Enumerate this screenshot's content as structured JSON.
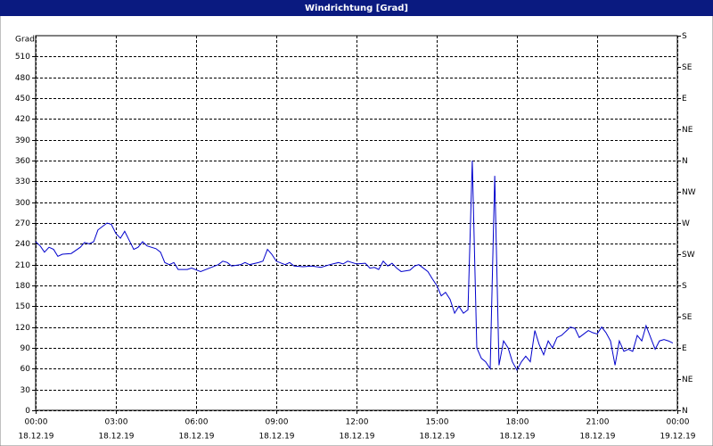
{
  "chart_data": {
    "type": "line",
    "title": "Windrichtung [Grad]",
    "ylabel": "Grad",
    "color": "#0000cc",
    "grid": true,
    "xlim": [
      0,
      24
    ],
    "xticks": [
      {
        "value": 0,
        "label": "00:00",
        "date": "18.12.19"
      },
      {
        "value": 3,
        "label": "03:00",
        "date": "18.12.19"
      },
      {
        "value": 6,
        "label": "06:00",
        "date": "18.12.19"
      },
      {
        "value": 9,
        "label": "09:00",
        "date": "18.12.19"
      },
      {
        "value": 12,
        "label": "12:00",
        "date": "18.12.19"
      },
      {
        "value": 15,
        "label": "15:00",
        "date": "18.12.19"
      },
      {
        "value": 18,
        "label": "18:00",
        "date": "18.12.19"
      },
      {
        "value": 21,
        "label": "21:00",
        "date": "18.12.19"
      },
      {
        "value": 24,
        "label": "00:00",
        "date": "19.12.19"
      }
    ],
    "ylim": [
      0,
      540
    ],
    "yticks": [
      0,
      30,
      60,
      90,
      120,
      150,
      180,
      210,
      240,
      270,
      300,
      330,
      360,
      390,
      420,
      450,
      480,
      510
    ],
    "y2lim": [
      0,
      540
    ],
    "y2ticks": [
      {
        "value": 0,
        "label": "N"
      },
      {
        "value": 45,
        "label": "NE"
      },
      {
        "value": 90,
        "label": "E"
      },
      {
        "value": 135,
        "label": "SE"
      },
      {
        "value": 180,
        "label": "S"
      },
      {
        "value": 225,
        "label": "SW"
      },
      {
        "value": 270,
        "label": "W"
      },
      {
        "value": 315,
        "label": "NW"
      },
      {
        "value": 360,
        "label": "N"
      },
      {
        "value": 405,
        "label": "NE"
      },
      {
        "value": 450,
        "label": "E"
      },
      {
        "value": 495,
        "label": "SE"
      },
      {
        "value": 540,
        "label": "S"
      }
    ],
    "x": [
      0,
      0.17,
      0.33,
      0.5,
      0.67,
      0.83,
      1,
      1.33,
      1.67,
      1.83,
      2,
      2.17,
      2.33,
      2.5,
      2.67,
      2.83,
      3,
      3.17,
      3.33,
      3.5,
      3.67,
      3.83,
      4,
      4.17,
      4.5,
      4.67,
      4.83,
      5,
      5.17,
      5.33,
      5.67,
      5.83,
      6.17,
      6.5,
      6.83,
      7,
      7.17,
      7.33,
      7.67,
      7.83,
      8,
      8.33,
      8.5,
      8.67,
      8.83,
      9,
      9.33,
      9.5,
      9.67,
      10,
      10.33,
      10.67,
      11,
      11.33,
      11.5,
      11.67,
      11.83,
      12,
      12.33,
      12.5,
      12.67,
      12.83,
      13,
      13.17,
      13.33,
      13.5,
      13.67,
      14,
      14.17,
      14.33,
      14.5,
      14.67,
      14.83,
      15,
      15.17,
      15.33,
      15.5,
      15.67,
      15.83,
      16,
      16.17,
      16.33,
      16.5,
      16.67,
      16.83,
      17,
      17.17,
      17.33,
      17.5,
      17.67,
      17.83,
      18,
      18.17,
      18.33,
      18.5,
      18.67,
      18.83,
      19,
      19.17,
      19.33,
      19.5,
      19.67,
      20,
      20.17,
      20.33,
      20.5,
      20.67,
      20.83,
      21,
      21.17,
      21.33,
      21.5,
      21.67,
      21.83,
      22,
      22.17,
      22.33,
      22.5,
      22.67,
      22.83,
      23,
      23.17,
      23.33,
      23.5,
      23.67,
      23.83
    ],
    "values": [
      243,
      237,
      228,
      235,
      232,
      222,
      225,
      226,
      235,
      242,
      240,
      243,
      260,
      265,
      270,
      268,
      255,
      248,
      258,
      245,
      232,
      235,
      243,
      237,
      233,
      228,
      213,
      210,
      213,
      203,
      203,
      205,
      200,
      205,
      210,
      215,
      213,
      208,
      210,
      213,
      210,
      213,
      215,
      232,
      225,
      215,
      210,
      213,
      208,
      207,
      208,
      206,
      210,
      213,
      211,
      215,
      213,
      211,
      212,
      205,
      206,
      203,
      215,
      208,
      212,
      205,
      200,
      202,
      208,
      210,
      205,
      200,
      190,
      180,
      165,
      170,
      160,
      140,
      150,
      140,
      145,
      360,
      90,
      75,
      70,
      60,
      338,
      65,
      100,
      90,
      70,
      58,
      70,
      78,
      70,
      115,
      95,
      80,
      100,
      90,
      105,
      108,
      120,
      118,
      105,
      110,
      115,
      112,
      110,
      120,
      112,
      100,
      65,
      100,
      85,
      88,
      85,
      108,
      100,
      122,
      105,
      88,
      100,
      102,
      100,
      97
    ]
  }
}
